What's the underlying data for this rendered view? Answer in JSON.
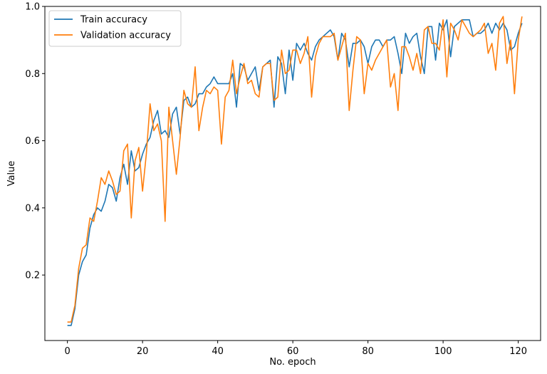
{
  "chart_data": {
    "type": "line",
    "title": "",
    "xlabel": "No. epoch",
    "ylabel": "Value",
    "xlim": [
      -6,
      125.95
    ],
    "ylim": [
      0.005,
      1.0
    ],
    "xticks": [
      0,
      20,
      40,
      60,
      80,
      100,
      120
    ],
    "yticks": [
      0.2,
      0.4,
      0.6,
      0.8,
      1.0
    ],
    "grid": false,
    "legend_position": "top-left",
    "series": [
      {
        "name": "Train accuracy",
        "color": "#1f77b4",
        "values": [
          0.05,
          0.05,
          0.1,
          0.2,
          0.24,
          0.26,
          0.34,
          0.38,
          0.4,
          0.39,
          0.42,
          0.47,
          0.46,
          0.42,
          0.49,
          0.53,
          0.47,
          0.57,
          0.51,
          0.52,
          0.56,
          0.59,
          0.61,
          0.66,
          0.69,
          0.62,
          0.63,
          0.61,
          0.68,
          0.7,
          0.62,
          0.72,
          0.73,
          0.7,
          0.71,
          0.74,
          0.74,
          0.76,
          0.77,
          0.79,
          0.77,
          0.77,
          0.77,
          0.77,
          0.8,
          0.7,
          0.83,
          0.82,
          0.78,
          0.8,
          0.82,
          0.75,
          0.82,
          0.83,
          0.84,
          0.7,
          0.85,
          0.83,
          0.74,
          0.87,
          0.78,
          0.89,
          0.87,
          0.89,
          0.86,
          0.84,
          0.88,
          0.9,
          0.91,
          0.92,
          0.93,
          0.91,
          0.84,
          0.92,
          0.9,
          0.82,
          0.89,
          0.89,
          0.9,
          0.88,
          0.83,
          0.88,
          0.9,
          0.9,
          0.88,
          0.9,
          0.9,
          0.91,
          0.86,
          0.8,
          0.92,
          0.89,
          0.91,
          0.92,
          0.85,
          0.8,
          0.94,
          0.94,
          0.84,
          0.95,
          0.93,
          0.96,
          0.85,
          0.94,
          0.95,
          0.96,
          0.96,
          0.96,
          0.91,
          0.92,
          0.92,
          0.93,
          0.95,
          0.92,
          0.95,
          0.93,
          0.95,
          0.93,
          0.87,
          0.88,
          0.92,
          0.95
        ]
      },
      {
        "name": "Validation accuracy",
        "color": "#ff7f0e",
        "values": [
          0.06,
          0.06,
          0.11,
          0.22,
          0.28,
          0.29,
          0.37,
          0.36,
          0.42,
          0.49,
          0.47,
          0.51,
          0.48,
          0.44,
          0.45,
          0.57,
          0.59,
          0.37,
          0.54,
          0.58,
          0.45,
          0.56,
          0.71,
          0.63,
          0.65,
          0.6,
          0.36,
          0.7,
          0.6,
          0.5,
          0.61,
          0.75,
          0.71,
          0.7,
          0.82,
          0.63,
          0.7,
          0.75,
          0.74,
          0.76,
          0.75,
          0.59,
          0.73,
          0.75,
          0.84,
          0.74,
          0.79,
          0.83,
          0.77,
          0.78,
          0.74,
          0.73,
          0.82,
          0.83,
          0.83,
          0.72,
          0.73,
          0.87,
          0.8,
          0.81,
          0.87,
          0.87,
          0.83,
          0.86,
          0.91,
          0.73,
          0.85,
          0.89,
          0.91,
          0.91,
          0.91,
          0.92,
          0.84,
          0.88,
          0.92,
          0.69,
          0.81,
          0.91,
          0.9,
          0.74,
          0.83,
          0.81,
          0.84,
          0.86,
          0.88,
          0.9,
          0.76,
          0.8,
          0.69,
          0.88,
          0.88,
          0.85,
          0.81,
          0.86,
          0.8,
          0.93,
          0.94,
          0.89,
          0.89,
          0.87,
          0.96,
          0.79,
          0.95,
          0.93,
          0.9,
          0.96,
          0.94,
          0.92,
          0.91,
          0.92,
          0.93,
          0.95,
          0.86,
          0.89,
          0.81,
          0.95,
          0.97,
          0.83,
          0.9,
          0.74,
          0.9,
          0.97
        ]
      }
    ]
  }
}
